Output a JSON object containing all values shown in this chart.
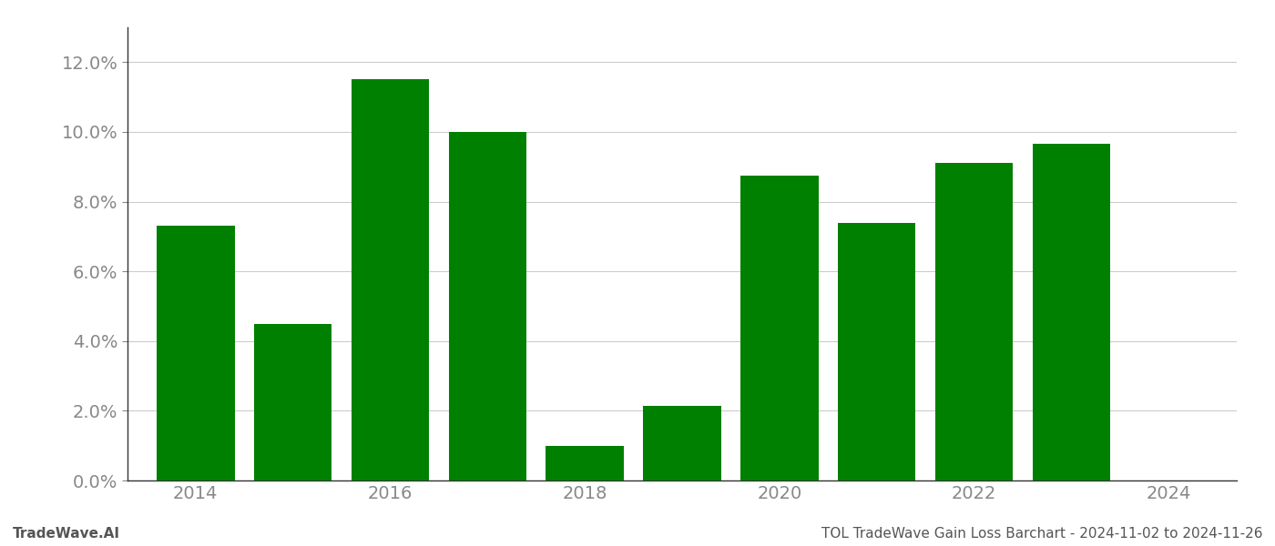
{
  "years": [
    2014,
    2015,
    2016,
    2017,
    2018,
    2019,
    2020,
    2021,
    2022,
    2023
  ],
  "values": [
    0.073,
    0.045,
    0.115,
    0.1,
    0.01,
    0.0215,
    0.0875,
    0.074,
    0.091,
    0.0965
  ],
  "bar_color": "#008000",
  "ylim": [
    0,
    0.13
  ],
  "yticks": [
    0.0,
    0.02,
    0.04,
    0.06,
    0.08,
    0.1,
    0.12
  ],
  "xticks": [
    2014,
    2016,
    2018,
    2020,
    2022,
    2024
  ],
  "xlabel": "",
  "ylabel": "",
  "title": "",
  "watermark_left": "TradeWave.AI",
  "watermark_right": "TOL TradeWave Gain Loss Barchart - 2024-11-02 to 2024-11-26",
  "background_color": "#ffffff",
  "grid_color": "#cccccc",
  "bar_width": 0.8,
  "spine_color": "#333333",
  "tick_label_color": "#888888",
  "watermark_color": "#555555",
  "xlim_left": 2013.3,
  "xlim_right": 2024.7
}
